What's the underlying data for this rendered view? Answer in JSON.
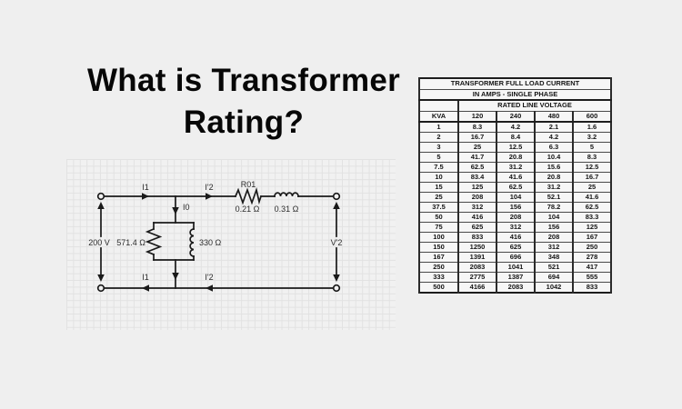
{
  "title": {
    "line1": "What is Transformer",
    "line2": "Rating?"
  },
  "colors": {
    "page_background": "#efefef",
    "paper_background": "#f1f1f1",
    "grid_line": "#e2e2e2",
    "ink": "#1a1a1a"
  },
  "circuit": {
    "labels": {
      "i1_top": "I1",
      "i2_top": "I'2",
      "r01_name": "R01",
      "r01_value": "0.21 Ω",
      "x01_value": "0.31 Ω",
      "i0": "I0",
      "source_voltage": "200 V",
      "core_loss_resistance": "571.4 Ω",
      "magnetizing_reactance": "330 Ω",
      "secondary_voltage": "V'2",
      "i1_bottom": "I1",
      "i2_bottom": "I'2"
    }
  },
  "table": {
    "title_line1": "TRANSFORMER FULL LOAD CURRENT",
    "title_line2": "IN AMPS - SINGLE PHASE",
    "subheader": "RATED LINE VOLTAGE",
    "columns": [
      "KVA",
      "120",
      "240",
      "480",
      "600"
    ],
    "rows": [
      [
        "1",
        "8.3",
        "4.2",
        "2.1",
        "1.6"
      ],
      [
        "2",
        "16.7",
        "8.4",
        "4.2",
        "3.2"
      ],
      [
        "3",
        "25",
        "12.5",
        "6.3",
        "5"
      ],
      [
        "5",
        "41.7",
        "20.8",
        "10.4",
        "8.3"
      ],
      [
        "7.5",
        "62.5",
        "31.2",
        "15.6",
        "12.5"
      ],
      [
        "10",
        "83.4",
        "41.6",
        "20.8",
        "16.7"
      ],
      [
        "15",
        "125",
        "62.5",
        "31.2",
        "25"
      ],
      [
        "25",
        "208",
        "104",
        "52.1",
        "41.6"
      ],
      [
        "37.5",
        "312",
        "156",
        "78.2",
        "62.5"
      ],
      [
        "50",
        "416",
        "208",
        "104",
        "83.3"
      ],
      [
        "75",
        "625",
        "312",
        "156",
        "125"
      ],
      [
        "100",
        "833",
        "416",
        "208",
        "167"
      ],
      [
        "150",
        "1250",
        "625",
        "312",
        "250"
      ],
      [
        "167",
        "1391",
        "696",
        "348",
        "278"
      ],
      [
        "250",
        "2083",
        "1041",
        "521",
        "417"
      ],
      [
        "333",
        "2775",
        "1387",
        "694",
        "555"
      ],
      [
        "500",
        "4166",
        "2083",
        "1042",
        "833"
      ]
    ]
  }
}
